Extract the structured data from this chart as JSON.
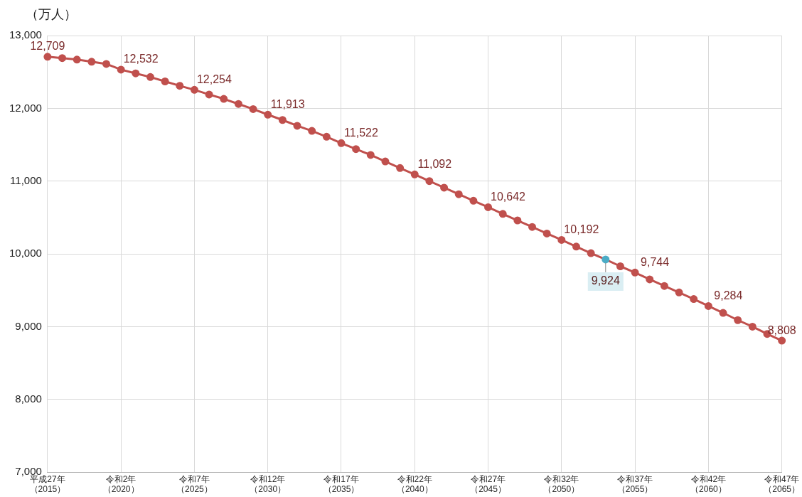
{
  "chart_data": {
    "type": "line",
    "ylabel": "（万人）",
    "categories": [
      "平成27年（2015）",
      null,
      null,
      null,
      null,
      "令和2年（2020）",
      null,
      null,
      null,
      null,
      "令和7年（2025）",
      null,
      null,
      null,
      null,
      "令和12年（2030）",
      null,
      null,
      null,
      null,
      "令和17年（2035）",
      null,
      null,
      null,
      null,
      "令和22年（2040）",
      null,
      null,
      null,
      null,
      "令和27年（2045）",
      null,
      null,
      null,
      null,
      "令和32年（2050）",
      null,
      null,
      null,
      null,
      "令和37年（2055）",
      null,
      null,
      null,
      null,
      "令和42年（2060）",
      null,
      null,
      null,
      null,
      "令和47年（2065）"
    ],
    "series": [
      {
        "color": "#c0504d",
        "values": [
          12709,
          12690,
          12670,
          12640,
          12610,
          12532,
          12480,
          12430,
          12370,
          12310,
          12254,
          12190,
          12130,
          12060,
          11990,
          11913,
          11840,
          11760,
          11690,
          11610,
          11522,
          11440,
          11360,
          11270,
          11180,
          11092,
          11000,
          10910,
          10820,
          10730,
          10642,
          10550,
          10460,
          10370,
          10280,
          10192,
          10100,
          10010,
          9924,
          9830,
          9744,
          9650,
          9560,
          9470,
          9380,
          9284,
          9190,
          9090,
          9000,
          8900,
          8808
        ],
        "colors": [
          "#c0504d",
          "#c0504d",
          "#c0504d",
          "#c0504d",
          "#c0504d",
          "#c0504d",
          "#c0504d",
          "#c0504d",
          "#c0504d",
          "#c0504d",
          "#c0504d",
          "#c0504d",
          "#c0504d",
          "#c0504d",
          "#c0504d",
          "#c0504d",
          "#c0504d",
          "#c0504d",
          "#c0504d",
          "#c0504d",
          "#c0504d",
          "#c0504d",
          "#c0504d",
          "#c0504d",
          "#c0504d",
          "#c0504d",
          "#c0504d",
          "#c0504d",
          "#c0504d",
          "#c0504d",
          "#c0504d",
          "#c0504d",
          "#c0504d",
          "#c0504d",
          "#c0504d",
          "#c0504d",
          "#c0504d",
          "#c0504d",
          "#4bacc6",
          "#c0504d",
          "#c0504d",
          "#c0504d",
          "#c0504d",
          "#c0504d",
          "#c0504d",
          "#c0504d",
          "#c0504d",
          "#c0504d",
          "#c0504d",
          "#c0504d",
          "#c0504d"
        ],
        "value_labels": [
          "12,709",
          null,
          null,
          null,
          null,
          "12,532",
          null,
          null,
          null,
          null,
          "12,254",
          null,
          null,
          null,
          null,
          "11,913",
          null,
          null,
          null,
          null,
          "11,522",
          null,
          null,
          null,
          null,
          "11,092",
          null,
          null,
          null,
          null,
          "10,642",
          null,
          null,
          null,
          null,
          "10,192",
          null,
          null,
          "9,924",
          null,
          "9,744",
          null,
          null,
          null,
          null,
          "9,284",
          null,
          null,
          null,
          null,
          "8,808"
        ]
      }
    ],
    "ylim": [
      7000,
      13000
    ],
    "yticks": [
      {
        "value": 7000,
        "label": "7,000"
      },
      {
        "value": 8000,
        "label": "8,000"
      },
      {
        "value": 9000,
        "label": "9,000"
      },
      {
        "value": 10000,
        "label": "10,000"
      },
      {
        "value": 11000,
        "label": "11,000"
      },
      {
        "value": 12000,
        "label": "12,000"
      },
      {
        "value": 13000,
        "label": "13,000"
      }
    ],
    "grid": true,
    "marker": "circle",
    "line_style": "solid",
    "legend": false
  }
}
